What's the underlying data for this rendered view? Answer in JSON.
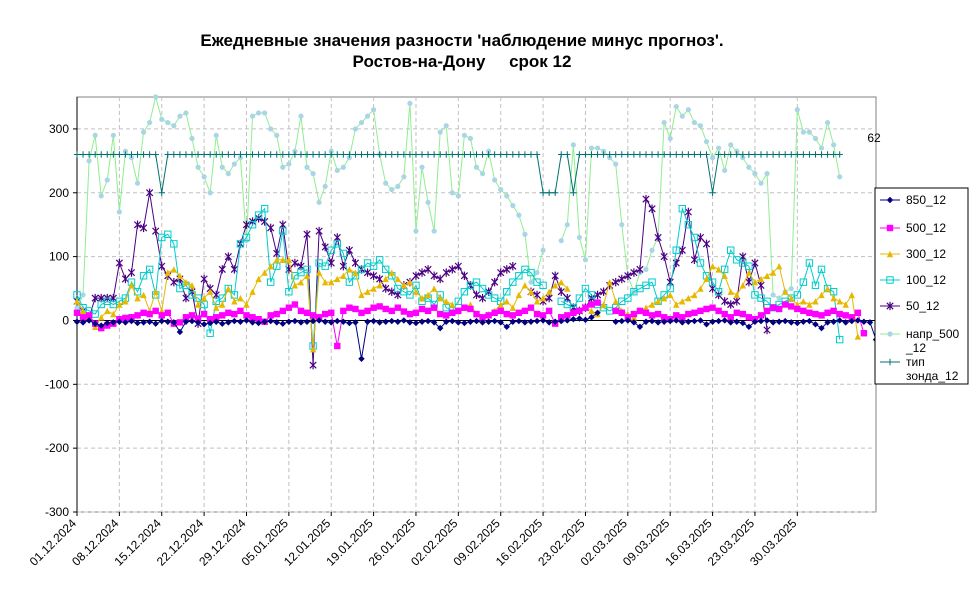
{
  "chart_data": {
    "type": "line",
    "title": "Ежедневные значения разности 'наблюдение минус прогноз'.",
    "subtitle": "Ростов-на-Дону     срок 12",
    "xlabel": "",
    "ylabel": "",
    "ylim": [
      -300,
      350
    ],
    "yticks": [
      -300,
      -200,
      -100,
      0,
      100,
      200,
      300
    ],
    "ytick_labels": [
      "-300",
      "-200",
      "-100",
      "0",
      "100",
      "200",
      "300"
    ],
    "x_start": "01.12.2024",
    "x_end": "31.03.2025",
    "xtick_labels": [
      "01.12.2024",
      "08.12.2024",
      "15.12.2024",
      "22.12.2024",
      "29.12.2024",
      "05.01.2025",
      "12.01.2025",
      "19.01.2025",
      "26.01.2025",
      "02.02.2025",
      "09.02.2025",
      "16.02.2025",
      "23.02.2025",
      "02.03.2025",
      "09.03.2025",
      "16.03.2025",
      "23.03.2025",
      "30.03.2025"
    ],
    "gap_range": [
      "10.02.2025",
      "11.02.2025"
    ],
    "grid": true,
    "legend_position": "right",
    "annotation": "62",
    "series": [
      {
        "name": "850_12",
        "color": "#000080",
        "marker": "diamond",
        "values": [
          -2,
          -3,
          0,
          -5,
          -8,
          -4,
          -3,
          -2,
          -3,
          -1,
          -4,
          -3,
          -2,
          -5,
          -1,
          -2,
          -3,
          -18,
          -2,
          -1,
          -3,
          -6,
          -4,
          -2,
          -5,
          -3,
          -1,
          -2,
          0,
          -3,
          -4,
          -2,
          -1,
          -3,
          -5,
          -2,
          -1,
          -3,
          -2,
          -1,
          0,
          -2,
          -3,
          -1,
          -2,
          -4,
          -3,
          -60,
          -2,
          -1,
          -3,
          -2,
          -1,
          -2,
          0,
          -3,
          -4,
          -2,
          -1,
          -3,
          -12,
          -2,
          -1,
          -3,
          -4,
          -2,
          -1,
          -3,
          -2,
          -1,
          -3,
          -10,
          -2,
          -1,
          -3,
          -2,
          -1,
          0,
          -3,
          -2,
          -1,
          0,
          2,
          3,
          1,
          5,
          12,
          null,
          null,
          -2,
          -1,
          0,
          -3,
          -10,
          -2,
          -1,
          -3,
          -2,
          -1,
          0,
          -3,
          -2,
          -1,
          0,
          -6,
          -2,
          -1,
          0,
          -3,
          -2,
          -4,
          -10,
          -2,
          -1,
          0,
          -3,
          -2,
          -1,
          -3,
          -4,
          -2,
          -1,
          -6,
          -12,
          -3,
          -2,
          0,
          -3,
          -1,
          0,
          -2,
          -3,
          -30
        ]
      },
      {
        "name": "500_12",
        "color": "#ff00ff",
        "marker": "square",
        "values": [
          12,
          5,
          8,
          -5,
          -12,
          -8,
          -5,
          2,
          4,
          5,
          8,
          12,
          10,
          15,
          8,
          12,
          -5,
          -3,
          5,
          8,
          3,
          10,
          2,
          5,
          8,
          12,
          10,
          15,
          8,
          5,
          2,
          -2,
          8,
          10,
          15,
          20,
          25,
          15,
          12,
          8,
          5,
          10,
          12,
          -40,
          15,
          20,
          18,
          12,
          15,
          20,
          22,
          18,
          15,
          20,
          14,
          10,
          12,
          18,
          15,
          20,
          10,
          8,
          12,
          15,
          20,
          18,
          10,
          5,
          8,
          12,
          15,
          10,
          8,
          12,
          15,
          20,
          10,
          8,
          15,
          -5,
          5,
          8,
          12,
          15,
          20,
          25,
          28,
          null,
          null,
          15,
          12,
          5,
          10,
          15,
          12,
          8,
          10,
          5,
          2,
          8,
          5,
          10,
          12,
          15,
          18,
          20,
          15,
          10,
          5,
          12,
          10,
          5,
          2,
          8,
          15,
          20,
          18,
          25,
          22,
          18,
          15,
          12,
          10,
          8,
          12,
          15,
          10,
          8,
          5,
          12,
          -20
        ]
      },
      {
        "name": "300_12",
        "color": "#e6b800",
        "marker": "triangle",
        "values": [
          30,
          15,
          5,
          -10,
          5,
          15,
          10,
          25,
          30,
          55,
          35,
          40,
          15,
          45,
          15,
          75,
          80,
          70,
          60,
          55,
          25,
          35,
          45,
          20,
          25,
          50,
          30,
          35,
          25,
          45,
          65,
          75,
          85,
          95,
          95,
          95,
          55,
          60,
          70,
          -45,
          75,
          60,
          60,
          65,
          70,
          80,
          75,
          40,
          45,
          50,
          55,
          65,
          75,
          65,
          55,
          60,
          45,
          35,
          40,
          50,
          35,
          30,
          25,
          15,
          20,
          25,
          10,
          5,
          10,
          15,
          25,
          30,
          20,
          40,
          55,
          45,
          30,
          35,
          45,
          55,
          60,
          50,
          null,
          null,
          20,
          15,
          10,
          25,
          60,
          30,
          15,
          10,
          5,
          15,
          20,
          25,
          30,
          35,
          40,
          25,
          30,
          35,
          40,
          50,
          65,
          85,
          80,
          70,
          45,
          40,
          55,
          75,
          60,
          65,
          70,
          75,
          85,
          45,
          35,
          25,
          30,
          25,
          30,
          40,
          50,
          35,
          30,
          25,
          40,
          -25
        ]
      },
      {
        "name": "100_12",
        "color": "#00cccc",
        "marker": "square-open",
        "values": [
          40,
          20,
          15,
          10,
          25,
          30,
          25,
          30,
          35,
          60,
          45,
          70,
          80,
          40,
          130,
          135,
          120,
          50,
          55,
          40,
          35,
          25,
          -20,
          30,
          35,
          50,
          40,
          120,
          130,
          150,
          165,
          175,
          60,
          85,
          140,
          45,
          70,
          75,
          80,
          -40,
          90,
          85,
          110,
          120,
          105,
          60,
          70,
          80,
          90,
          85,
          95,
          80,
          70,
          50,
          45,
          40,
          55,
          30,
          35,
          25,
          40,
          20,
          15,
          30,
          45,
          55,
          60,
          50,
          40,
          35,
          30,
          45,
          60,
          70,
          80,
          75,
          60,
          55,
          null,
          null,
          30,
          25,
          20,
          35,
          50,
          40,
          25,
          20,
          15,
          20,
          30,
          35,
          45,
          50,
          55,
          60,
          30,
          40,
          50,
          110,
          175,
          150,
          130,
          90,
          70,
          60,
          45,
          80,
          110,
          95,
          90,
          85,
          40,
          35,
          30,
          20,
          25,
          30,
          35,
          40,
          60,
          90,
          55,
          80,
          50,
          45,
          -30
        ]
      },
      {
        "name": "50_12",
        "color": "#4b0082",
        "marker": "star",
        "values": [
          30,
          15,
          5,
          35,
          35,
          35,
          35,
          90,
          65,
          75,
          150,
          145,
          200,
          140,
          85,
          70,
          60,
          65,
          35,
          45,
          -5,
          65,
          50,
          40,
          80,
          100,
          80,
          120,
          150,
          155,
          160,
          155,
          145,
          105,
          150,
          80,
          90,
          85,
          135,
          -70,
          140,
          115,
          90,
          130,
          85,
          110,
          90,
          80,
          75,
          70,
          65,
          50,
          45,
          40,
          55,
          60,
          70,
          75,
          80,
          70,
          65,
          75,
          80,
          85,
          70,
          55,
          40,
          35,
          45,
          60,
          75,
          80,
          85,
          null,
          null,
          45,
          40,
          30,
          35,
          70,
          45,
          35,
          20,
          15,
          20,
          35,
          40,
          45,
          55,
          60,
          65,
          70,
          75,
          80,
          190,
          175,
          130,
          100,
          60,
          90,
          110,
          170,
          95,
          130,
          120,
          50,
          40,
          30,
          25,
          30,
          100,
          60,
          90,
          55,
          -15
        ]
      },
      {
        "name": "напр_500_12",
        "color": "#a9d6e5",
        "line_color": "#90ee90",
        "marker": "circle",
        "values": [
          20,
          40,
          250,
          290,
          195,
          220,
          290,
          170,
          265,
          255,
          215,
          295,
          310,
          350,
          315,
          310,
          305,
          320,
          325,
          285,
          240,
          225,
          200,
          290,
          240,
          230,
          245,
          255,
          125,
          320,
          325,
          325,
          300,
          290,
          240,
          245,
          265,
          320,
          240,
          230,
          185,
          210,
          265,
          235,
          240,
          255,
          300,
          310,
          320,
          330,
          260,
          215,
          205,
          210,
          225,
          340,
          140,
          240,
          185,
          140,
          295,
          305,
          200,
          195,
          290,
          285,
          240,
          230,
          265,
          220,
          205,
          195,
          180,
          165,
          135,
          60,
          75,
          110,
          null,
          null,
          125,
          150,
          275,
          130,
          95,
          270,
          270,
          265,
          255,
          245,
          150,
          70,
          45,
          75,
          80,
          110,
          130,
          310,
          285,
          335,
          320,
          330,
          310,
          305,
          280,
          255,
          270,
          235,
          275,
          265,
          255,
          240,
          230,
          215,
          230,
          40,
          35,
          45,
          50,
          330,
          295,
          295,
          285,
          270,
          310,
          275,
          225
        ]
      },
      {
        "name": "тип зонда_12",
        "color": "#007070",
        "marker": "plus",
        "values": [
          260,
          260,
          260,
          260,
          260,
          260,
          260,
          260,
          260,
          260,
          260,
          260,
          260,
          260,
          200,
          260,
          260,
          260,
          260,
          260,
          260,
          260,
          260,
          260,
          260,
          260,
          260,
          260,
          260,
          260,
          260,
          260,
          260,
          260,
          260,
          260,
          260,
          260,
          260,
          260,
          260,
          260,
          260,
          260,
          260,
          260,
          260,
          260,
          260,
          260,
          260,
          260,
          260,
          260,
          260,
          260,
          260,
          260,
          260,
          260,
          260,
          260,
          260,
          260,
          260,
          260,
          260,
          260,
          260,
          260,
          260,
          260,
          260,
          260,
          260,
          260,
          260,
          200,
          200,
          200,
          260,
          260,
          200,
          260,
          260,
          260,
          260,
          260,
          260,
          260,
          260,
          260,
          260,
          260,
          260,
          260,
          260,
          260,
          260,
          260,
          260,
          260,
          260,
          260,
          260,
          200,
          260,
          260,
          260,
          260,
          260,
          260,
          260,
          260,
          260,
          260,
          260,
          260,
          260,
          260,
          260,
          260,
          260,
          260,
          260,
          260,
          260
        ]
      }
    ]
  }
}
